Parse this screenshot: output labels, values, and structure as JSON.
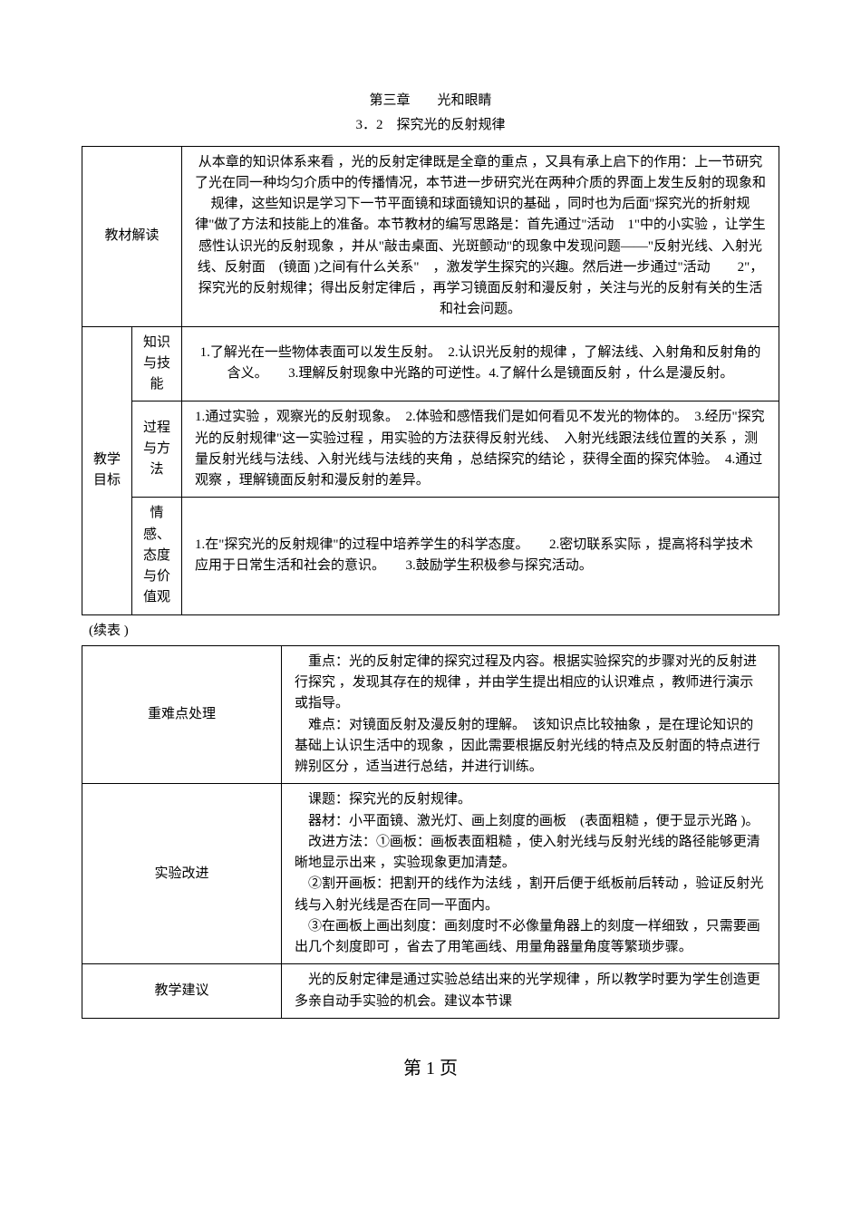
{
  "header": {
    "chapter": "第三章　　光和眼睛",
    "section": "3．2　探究光的反射规律"
  },
  "table1": {
    "r1": {
      "label": "教材解读",
      "content": "从本章的知识体系来看 ，光的反射定律既是全章的重点 ，又具有承上启下的作用：上一节研究了光在同一种均匀介质中的传播情况，本节进一步研究光在两种介质的界面上发生反射的现象和规律，这些知识是学习下一节平面镜和球面镜知识的基础 ，同时也为后面\"探究光的折射规律\"做了方法和技能上的准备。本节教材的编写思路是：首先通过\"活动　1\"中的小实验 ，让学生感性认识光的反射现象 ，并从\"敲击桌面、光斑颤动\"的现象中发现问题——\"反射光线、入射光线、反射面　(镜面 )之间有什么关系\"　，激发学生探究的兴趣。然后进一步通过\"活动　　2\"， 探究光的反射规律；得出反射定律后 ，再学习镜面反射和漫反射 ，关注与光的反射有关的生活和社会问题。"
    },
    "r2": {
      "label": "教学目标",
      "sub1_label": "知识与技能",
      "sub1_content": "1.了解光在一些物体表面可以发生反射。　2.认识光反射的规律 ，了解法线、入射角和反射角的含义。　　3.理解反射现象中光路的可逆性。4.了解什么是镜面反射 ，什么是漫反射。",
      "sub2_label": "过程与方法",
      "sub2_content": "1.通过实验 ，观察光的反射现象。　2.体验和感悟我们是如何看见不发光的物体的。　3.经历\"探究光的反射规律\"这一实验过程 ，用实验的方法获得反射光线、　入射光线跟法线位置的关系 ，测量反射光线与法线、入射光线与法线的夹角 ，总结探究的结论 ，获得全面的探究体验。　4.通过观察 ，理解镜面反射和漫反射的差异。",
      "sub3_label": "情感、态度与价值观",
      "sub3_content": "1.在\"探究光的反射规律\"的过程中培养学生的科学态度。　　2.密切联系实际 ，提高将科学技术应用于日常生活和社会的意识。　　3.鼓励学生积极参与探究活动。"
    }
  },
  "continuation": "(续表 )",
  "table2": {
    "r1": {
      "label": "重难点处理",
      "content": "　重点：光的反射定律的探究过程及内容。根据实验探究的步骤对光的反射进行探究 ，发现其存在的规律 ，并由学生提出相应的认识难点 ，教师进行演示或指导。\n　难点：对镜面反射及漫反射的理解。　该知识点比较抽象 ，是在理论知识的基础上认识生活中的现象 ，因此需要根据反射光线的特点及反射面的特点进行辨别区分 ，适当进行总结，并进行训练。"
    },
    "r2": {
      "label": "实验改进",
      "content": "　课题：探究光的反射规律。\n　器材：小平面镜、激光灯、画上刻度的画板　(表面粗糙 ，便于显示光路 )。\n　改进方法：①画板：画板表面粗糙 ，使入射光线与反射光线的路径能够更清晰地显示出来 ，实验现象更加清楚。\n　②割开画板：把割开的线作为法线 ，割开后便于纸板前后转动 ，验证反射光线与入射光线是否在同一平面内。\n　③在画板上画出刻度：画刻度时不必像量角器上的刻度一样细致 ，只需要画出几个刻度即可 ，省去了用笔画线、用量角器量角度等繁琐步骤。"
    },
    "r3": {
      "label": "教学建议",
      "content": "　光的反射定律是通过实验总结出来的光学规律 ，所以教学时要为学生创造更多亲自动手实验的机会。建议本节课"
    }
  },
  "footer": "第 1 页"
}
